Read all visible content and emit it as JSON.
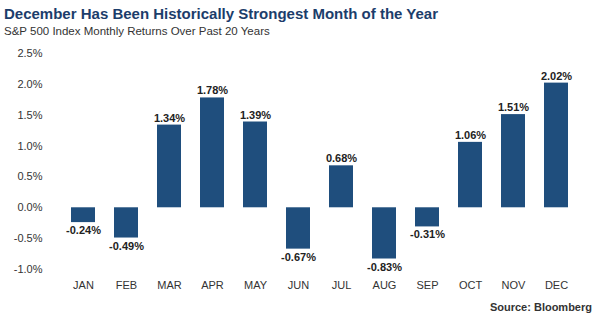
{
  "chart_data": {
    "type": "bar",
    "title": "December Has Been Historically Strongest Month of the Year",
    "subtitle": "S&P 500 Index Monthly Returns Over Past 20 Years",
    "source": "Source: Bloomberg",
    "categories": [
      "JAN",
      "FEB",
      "MAR",
      "APR",
      "MAY",
      "JUN",
      "JUL",
      "AUG",
      "SEP",
      "OCT",
      "NOV",
      "DEC"
    ],
    "values": [
      -0.24,
      -0.49,
      1.34,
      1.78,
      1.39,
      -0.67,
      0.68,
      -0.83,
      -0.31,
      1.06,
      1.51,
      2.02
    ],
    "value_labels": [
      "-0.24%",
      "-0.49%",
      "1.34%",
      "1.78%",
      "1.39%",
      "-0.67%",
      "0.68%",
      "-0.83%",
      "-0.31%",
      "1.06%",
      "1.51%",
      "2.02%"
    ],
    "color": "#1f4e7d",
    "ylim": [
      -1.0,
      2.5
    ],
    "yticks": [
      {
        "value": -1.0,
        "label": "-1.0%"
      },
      {
        "value": -0.5,
        "label": "-0.5%"
      },
      {
        "value": 0.0,
        "label": "0.0%"
      },
      {
        "value": 0.5,
        "label": "0.5%"
      },
      {
        "value": 1.0,
        "label": "1.0%"
      },
      {
        "value": 1.5,
        "label": "1.5%"
      },
      {
        "value": 2.0,
        "label": "2.0%"
      },
      {
        "value": 2.5,
        "label": "2.5%"
      }
    ],
    "grid": false,
    "data_labels": true
  }
}
